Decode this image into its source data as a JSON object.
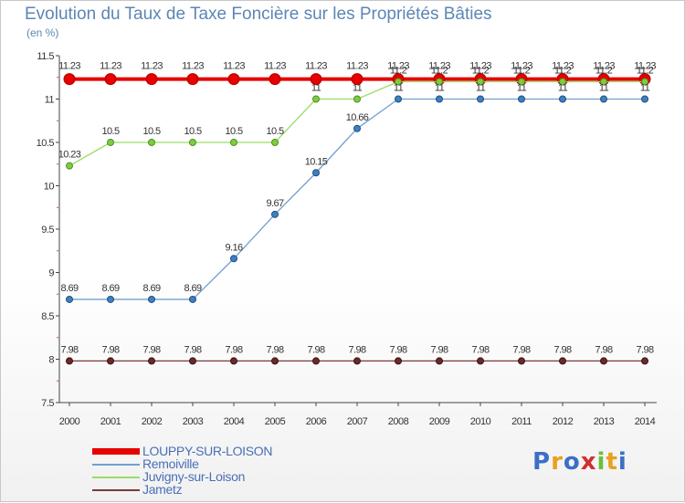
{
  "chart_data": {
    "type": "line",
    "title": "Evolution du Taux de Taxe Foncière sur les Propriétés Bâties",
    "ylabel": "(en %)",
    "xlabel": "",
    "ylim": [
      7.5,
      11.5
    ],
    "yticks": [
      "7.5",
      "8",
      "8.5",
      "9",
      "9.5",
      "10",
      "10.5",
      "11",
      "11.5"
    ],
    "yticks_values": [
      7.5,
      8,
      8.5,
      9,
      9.5,
      10,
      10.5,
      11,
      11.5
    ],
    "categories": [
      "2000",
      "2001",
      "2002",
      "2003",
      "2004",
      "2005",
      "2006",
      "2007",
      "2008",
      "2009",
      "2010",
      "2011",
      "2012",
      "2013",
      "2014"
    ],
    "series": [
      {
        "name": "LOUPPY-SUR-LOISON",
        "color": "#e60000",
        "values": [
          11.23,
          11.23,
          11.23,
          11.23,
          11.23,
          11.23,
          11.23,
          11.23,
          11.23,
          11.23,
          11.23,
          11.23,
          11.23,
          11.23,
          11.23
        ],
        "labels": [
          "11.23",
          "11.23",
          "11.23",
          "11.23",
          "11.23",
          "11.23",
          "11.23",
          "11.23",
          "11.23",
          "11.23",
          "11.23",
          "11.23",
          "11.23",
          "11.23",
          "11.23"
        ]
      },
      {
        "name": "Remoiville",
        "color": "#6fa0d0",
        "values": [
          8.69,
          8.69,
          8.69,
          8.69,
          9.16,
          9.67,
          10.15,
          10.66,
          11,
          11,
          11,
          11,
          11,
          11,
          11
        ],
        "labels": [
          "8.69",
          "8.69",
          "8.69",
          "8.69",
          "9.16",
          "9.67",
          "10.15",
          "10.66",
          "11",
          "11",
          "11",
          "11",
          "11",
          "11",
          "11"
        ]
      },
      {
        "name": "Juvigny-sur-Loison",
        "color": "#99dd66",
        "values": [
          10.23,
          10.5,
          10.5,
          10.5,
          10.5,
          10.5,
          11,
          11,
          11.2,
          11.2,
          11.2,
          11.2,
          11.2,
          11.2,
          11.2
        ],
        "labels": [
          "10.23",
          "10.5",
          "10.5",
          "10.5",
          "10.5",
          "10.5",
          "11",
          "11",
          "11.2",
          "11.2",
          "11.2",
          "11.2",
          "11.2",
          "11.2",
          "11.2"
        ]
      },
      {
        "name": "Jametz",
        "color": "#7a3a3a",
        "values": [
          7.98,
          7.98,
          7.98,
          7.98,
          7.98,
          7.98,
          7.98,
          7.98,
          7.98,
          7.98,
          7.98,
          7.98,
          7.98,
          7.98,
          7.98
        ],
        "labels": [
          "7.98",
          "7.98",
          "7.98",
          "7.98",
          "7.98",
          "7.98",
          "7.98",
          "7.98",
          "7.98",
          "7.98",
          "7.98",
          "7.98",
          "7.98",
          "7.98",
          "7.98"
        ]
      }
    ]
  },
  "logo": {
    "letters": [
      "P",
      "r",
      "o",
      "x",
      "i",
      "t",
      "i"
    ],
    "colors": [
      "#3a6fc9",
      "#e8a020",
      "#3a6fc9",
      "#d03030",
      "#6bbf3a",
      "#e8a020",
      "#3a6fc9"
    ]
  }
}
